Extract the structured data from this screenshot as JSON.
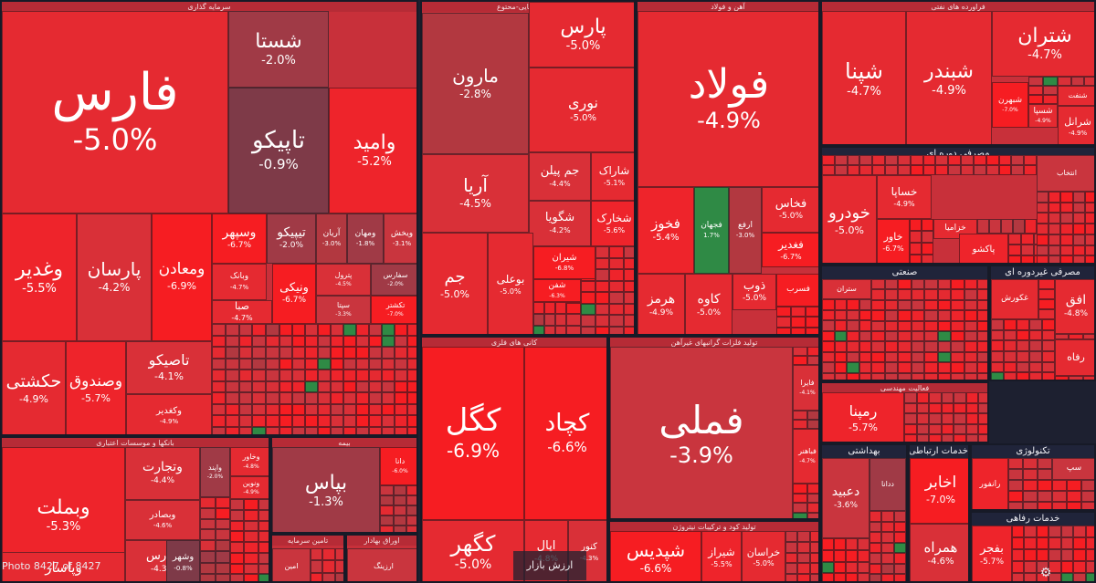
{
  "chart_data": {
    "type": "treemap",
    "sectors": [
      {
        "id": "s1",
        "name": "سرمایه گذاری",
        "tiles": [
          {
            "symbol": "فارس",
            "change": -5.0,
            "label": "-5.0%"
          },
          {
            "symbol": "شستا",
            "change": -2.0,
            "label": "-2.0%"
          },
          {
            "symbol": "تاپیکو",
            "change": -0.9,
            "label": "-0.9%"
          },
          {
            "symbol": "وامید",
            "change": -5.2,
            "label": "-5.2%"
          },
          {
            "symbol": "وغدیر",
            "change": -5.5,
            "label": "-5.5%"
          },
          {
            "symbol": "پارسان",
            "change": -4.2,
            "label": "-4.2%"
          },
          {
            "symbol": "ومعادن",
            "change": -6.9,
            "label": "-6.9%"
          },
          {
            "symbol": "وسپهر",
            "change": -6.7,
            "label": "-6.7%"
          },
          {
            "symbol": "تیپیکو",
            "change": -2.0,
            "label": "-2.0%"
          },
          {
            "symbol": "آریان",
            "change": -3.0,
            "label": "-3.0%"
          },
          {
            "symbol": "ومهان",
            "change": -1.8,
            "label": "-1.8%"
          },
          {
            "symbol": "ویخش",
            "change": -3.1,
            "label": "-3.1%"
          },
          {
            "symbol": "وبانک",
            "change": -4.7,
            "label": "-4.7%"
          },
          {
            "symbol": "پترول",
            "change": -4.5,
            "label": "-4.5%"
          },
          {
            "symbol": "سفارس",
            "change": -2.0,
            "label": "-2.0%"
          },
          {
            "symbol": "صبا",
            "change": -4.7,
            "label": "-4.7%"
          },
          {
            "symbol": "ونیکی",
            "change": -6.7,
            "label": "-6.7%"
          },
          {
            "symbol": "سپتا",
            "change": -3.3,
            "label": "-3.3%"
          },
          {
            "symbol": "تکشتر",
            "change": -7.0,
            "label": "-7.0%"
          },
          {
            "symbol": "حکشتی",
            "change": -4.9,
            "label": "-4.9%"
          },
          {
            "symbol": "وصندوق",
            "change": -5.7,
            "label": "-5.7%"
          },
          {
            "symbol": "تاصیکو",
            "change": -4.1,
            "label": "-4.1%"
          },
          {
            "symbol": "وکغدیر",
            "change": -4.9,
            "label": "-4.9%"
          }
        ]
      },
      {
        "id": "s2",
        "name": "بانکها و موسسات اعتباری",
        "tiles": [
          {
            "symbol": "وبملت",
            "change": -5.3,
            "label": "-5.3%"
          },
          {
            "symbol": "وتجارت",
            "change": -4.4,
            "label": "-4.4%"
          },
          {
            "symbol": "وبصادر",
            "change": -4.6,
            "label": "-4.6%"
          },
          {
            "symbol": "وپارس",
            "change": -4.3,
            "label": "-4.3%"
          },
          {
            "symbol": "وپاسار",
            "change": -4.7,
            "label": ""
          },
          {
            "symbol": "واپند",
            "change": -2.0,
            "label": "-2.0%"
          },
          {
            "symbol": "وخاور",
            "change": -4.8,
            "label": "-4.8%"
          },
          {
            "symbol": "ونوین",
            "change": -4.9,
            "label": "-4.9%"
          },
          {
            "symbol": "وشهر",
            "change": -0.8,
            "label": "-0.8%"
          }
        ]
      },
      {
        "id": "s3",
        "name": "بیمه",
        "tiles": [
          {
            "symbol": "بپاس",
            "change": -1.3,
            "label": "-1.3%"
          },
          {
            "symbol": "دانا",
            "change": -6.0,
            "label": "-6.0%"
          }
        ]
      },
      {
        "id": "s4",
        "name": "مواد شیمیایی-محتوع",
        "tiles": [
          {
            "symbol": "پارس",
            "change": -5.0,
            "label": "-5.0%"
          },
          {
            "symbol": "مارون",
            "change": -2.8,
            "label": "-2.8%"
          },
          {
            "symbol": "نوری",
            "change": -5.0,
            "label": "-5.0%"
          },
          {
            "symbol": "آریا",
            "change": -4.5,
            "label": "-4.5%"
          },
          {
            "symbol": "جم پیلن",
            "change": -4.4,
            "label": "-4.4%"
          },
          {
            "symbol": "شاراک",
            "change": -5.1,
            "label": "-5.1%"
          },
          {
            "symbol": "شگویا",
            "change": -4.2,
            "label": "-4.2%"
          },
          {
            "symbol": "شخارک",
            "change": -5.6,
            "label": "-5.6%"
          },
          {
            "symbol": "جم",
            "change": -5.0,
            "label": "-5.0%"
          },
          {
            "symbol": "بوعلی",
            "change": -5.0,
            "label": "-5.0%"
          },
          {
            "symbol": "شیران",
            "change": -6.8,
            "label": "-6.8%"
          },
          {
            "symbol": "شفن",
            "change": -6.3,
            "label": "-6.3%"
          }
        ]
      },
      {
        "id": "s5",
        "name": "آهن و فولاد",
        "tiles": [
          {
            "symbol": "فولاد",
            "change": -4.9,
            "label": "-4.9%"
          },
          {
            "symbol": "فخوز",
            "change": -5.4,
            "label": "-5.4%"
          },
          {
            "symbol": "فجهان",
            "change": 1.7,
            "label": "1.7%"
          },
          {
            "symbol": "ارفع",
            "change": -3.0,
            "label": "-3.0%"
          },
          {
            "symbol": "فخاس",
            "change": -5.0,
            "label": "-5.0%"
          },
          {
            "symbol": "فغدیر",
            "change": -6.7,
            "label": "-6.7%"
          },
          {
            "symbol": "هرمز",
            "change": -4.9,
            "label": "-4.9%"
          },
          {
            "symbol": "کاوه",
            "change": -5.0,
            "label": "-5.0%"
          },
          {
            "symbol": "ذوب",
            "change": -5.0,
            "label": "-5.0%"
          },
          {
            "symbol": "فسرب",
            "change": -6.3,
            "label": ""
          }
        ]
      },
      {
        "id": "s6",
        "name": "فراورده های نفتی",
        "tiles": [
          {
            "symbol": "شپنا",
            "change": -4.7,
            "label": "-4.7%"
          },
          {
            "symbol": "شبندر",
            "change": -4.9,
            "label": "-4.9%"
          },
          {
            "symbol": "شتران",
            "change": -4.7,
            "label": "-4.7%"
          },
          {
            "symbol": "شنفت",
            "change": -4.9,
            "label": ""
          },
          {
            "symbol": "شبهرن",
            "change": -7.0,
            "label": "-7.0%"
          },
          {
            "symbol": "شسپا",
            "change": -4.9,
            "label": "-4.9%"
          },
          {
            "symbol": "شرانل",
            "change": -4.9,
            "label": "-4.9%"
          }
        ]
      },
      {
        "id": "s7",
        "name": "مصرفی دوره ای",
        "tiles": [
          {
            "symbol": "خودرو",
            "change": -5.0,
            "label": "-5.0%"
          },
          {
            "symbol": "خساپا",
            "change": -4.9,
            "label": "-4.9%"
          },
          {
            "symbol": "خاور",
            "change": -6.7,
            "label": "-6.7%"
          },
          {
            "symbol": "خزامیا",
            "change": -4.8,
            "label": ""
          },
          {
            "symbol": "پاکشو",
            "change": -5.5,
            "label": ""
          },
          {
            "symbol": "انتخاب",
            "change": -3.5,
            "label": ""
          }
        ]
      },
      {
        "id": "s8",
        "name": "صنعتی",
        "tiles": [
          {
            "symbol": "ستران",
            "change": -4.4,
            "label": ""
          }
        ]
      },
      {
        "id": "s9",
        "name": "مصرفی غیردوره ای",
        "tiles": [
          {
            "symbol": "غکورش",
            "change": -4.8,
            "label": ""
          },
          {
            "symbol": "افق",
            "change": -4.8,
            "label": "-4.8%"
          },
          {
            "symbol": "رفاه",
            "change": -5.0,
            "label": ""
          }
        ]
      },
      {
        "id": "s10",
        "name": "فعالیت مهندسی",
        "tiles": [
          {
            "symbol": "رمپنا",
            "change": -5.7,
            "label": "-5.7%"
          }
        ]
      },
      {
        "id": "s11",
        "name": "بهداشتی",
        "tiles": [
          {
            "symbol": "دعبید",
            "change": -3.6,
            "label": "-3.6%"
          },
          {
            "symbol": "ددانا",
            "change": -1.8,
            "label": ""
          }
        ]
      },
      {
        "id": "s12",
        "name": "خدمات ارتباطی",
        "tiles": [
          {
            "symbol": "اخابر",
            "change": -7.0,
            "label": "-7.0%"
          },
          {
            "symbol": "همراه",
            "change": -4.6,
            "label": "-4.6%"
          }
        ]
      },
      {
        "id": "s13",
        "name": "تکنولوژی",
        "tiles": [
          {
            "symbol": "رانفور",
            "change": -5.4,
            "label": ""
          },
          {
            "symbol": "سپ",
            "change": -3.1,
            "label": ""
          }
        ]
      },
      {
        "id": "s14",
        "name": "خدمات رفاهی",
        "tiles": [
          {
            "symbol": "بفجر",
            "change": -5.7,
            "label": "-5.7%"
          }
        ]
      },
      {
        "id": "s15",
        "name": "کانی های فلزی",
        "tiles": [
          {
            "symbol": "کگل",
            "change": -6.9,
            "label": "-6.9%"
          },
          {
            "symbol": "کچاد",
            "change": -6.6,
            "label": "-6.6%"
          },
          {
            "symbol": "کگهر",
            "change": -5.0,
            "label": "-5.0%"
          },
          {
            "symbol": "اپال",
            "change": -4.8,
            "label": "-4.8%"
          },
          {
            "symbol": "کنور",
            "change": -4.3,
            "label": "-4.3%"
          }
        ]
      },
      {
        "id": "s16",
        "name": "تولید فلزات گرانبهای غیرآهن",
        "tiles": [
          {
            "symbol": "فملی",
            "change": -3.9,
            "label": "-3.9%"
          },
          {
            "symbol": "فایرا",
            "change": -4.1,
            "label": "-4.1%"
          },
          {
            "symbol": "فباهنر",
            "change": -4.7,
            "label": "-4.7%"
          }
        ]
      },
      {
        "id": "s17",
        "name": "تولید کود و ترکیبات نیتروژن",
        "tiles": [
          {
            "symbol": "شپدیس",
            "change": -6.6,
            "label": "-6.6%"
          },
          {
            "symbol": "شیراز",
            "change": -5.5,
            "label": "-5.5%"
          },
          {
            "symbol": "خراسان",
            "change": -5.0,
            "label": "-5.0%"
          }
        ]
      },
      {
        "id": "s18",
        "name": "تامین سرمایه",
        "tiles": [
          {
            "symbol": "امین",
            "change": -3.2,
            "label": ""
          }
        ]
      },
      {
        "id": "s19",
        "name": "اوراق بهادار",
        "tiles": [
          {
            "symbol": "ارزینگ",
            "change": -4.0,
            "label": ""
          }
        ]
      }
    ]
  },
  "footer": {
    "photo_counter": "Photo 8427 of 8427",
    "center_label": "ارزش بازار"
  }
}
